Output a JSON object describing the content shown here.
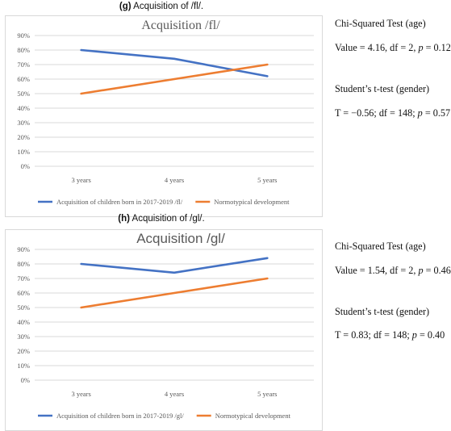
{
  "panels": [
    {
      "caption_letter": "(g)",
      "caption_rest": " Acquisition of /fl/.",
      "chart_data": {
        "type": "line",
        "title": "Acquisition /fl/",
        "title_style": "serif",
        "categories": [
          "3 years",
          "4 years",
          "5 years"
        ],
        "y_ticks": [
          "0%",
          "10%",
          "20%",
          "30%",
          "40%",
          "50%",
          "60%",
          "70%",
          "80%",
          "90%"
        ],
        "ylim": [
          0,
          90
        ],
        "grid": true,
        "legend_position": "bottom",
        "series": [
          {
            "name": "Acquisition of children born in 2017-2019 /fl/",
            "values": [
              80,
              74,
              62
            ],
            "color": "#4472c4"
          },
          {
            "name": "Normotypical development",
            "values": [
              50,
              60,
              70
            ],
            "color": "#ed7d31"
          }
        ]
      },
      "stats": {
        "chi_title": "Chi-Squared Test (age)",
        "chi_value_prefix": "Value = 4.16, df = 2, ",
        "chi_p_symbol": "p",
        "chi_p_value": " = 0.12",
        "t_title": "Student’s t-test (gender)",
        "t_value_prefix": "T = −0.56; df = 148; ",
        "t_p_symbol": "p",
        "t_p_value": " = 0.57"
      }
    },
    {
      "caption_letter": "(h)",
      "caption_rest": " Acquisition of /gl/.",
      "chart_data": {
        "type": "line",
        "title": "Acquisition /gl/",
        "title_style": "sans",
        "categories": [
          "3 years",
          "4 years",
          "5 years"
        ],
        "y_ticks": [
          "0%",
          "10%",
          "20%",
          "30%",
          "40%",
          "50%",
          "60%",
          "70%",
          "80%",
          "90%"
        ],
        "ylim": [
          0,
          90
        ],
        "grid": true,
        "legend_position": "bottom",
        "series": [
          {
            "name": "Acquisition of children born in 2017-2019 /gl/",
            "values": [
              80,
              74,
              84
            ],
            "color": "#4472c4"
          },
          {
            "name": "Normotypical development",
            "values": [
              50,
              60,
              70
            ],
            "color": "#ed7d31"
          }
        ]
      },
      "stats": {
        "chi_title": "Chi-Squared Test (age)",
        "chi_value_prefix": "Value = 1.54, df = 2, ",
        "chi_p_symbol": "p",
        "chi_p_value": " = 0.46",
        "t_title": "Student’s t-test (gender)",
        "t_value_prefix": "T = 0.83; df = 148; ",
        "t_p_symbol": "p",
        "t_p_value": " = 0.40"
      }
    }
  ]
}
